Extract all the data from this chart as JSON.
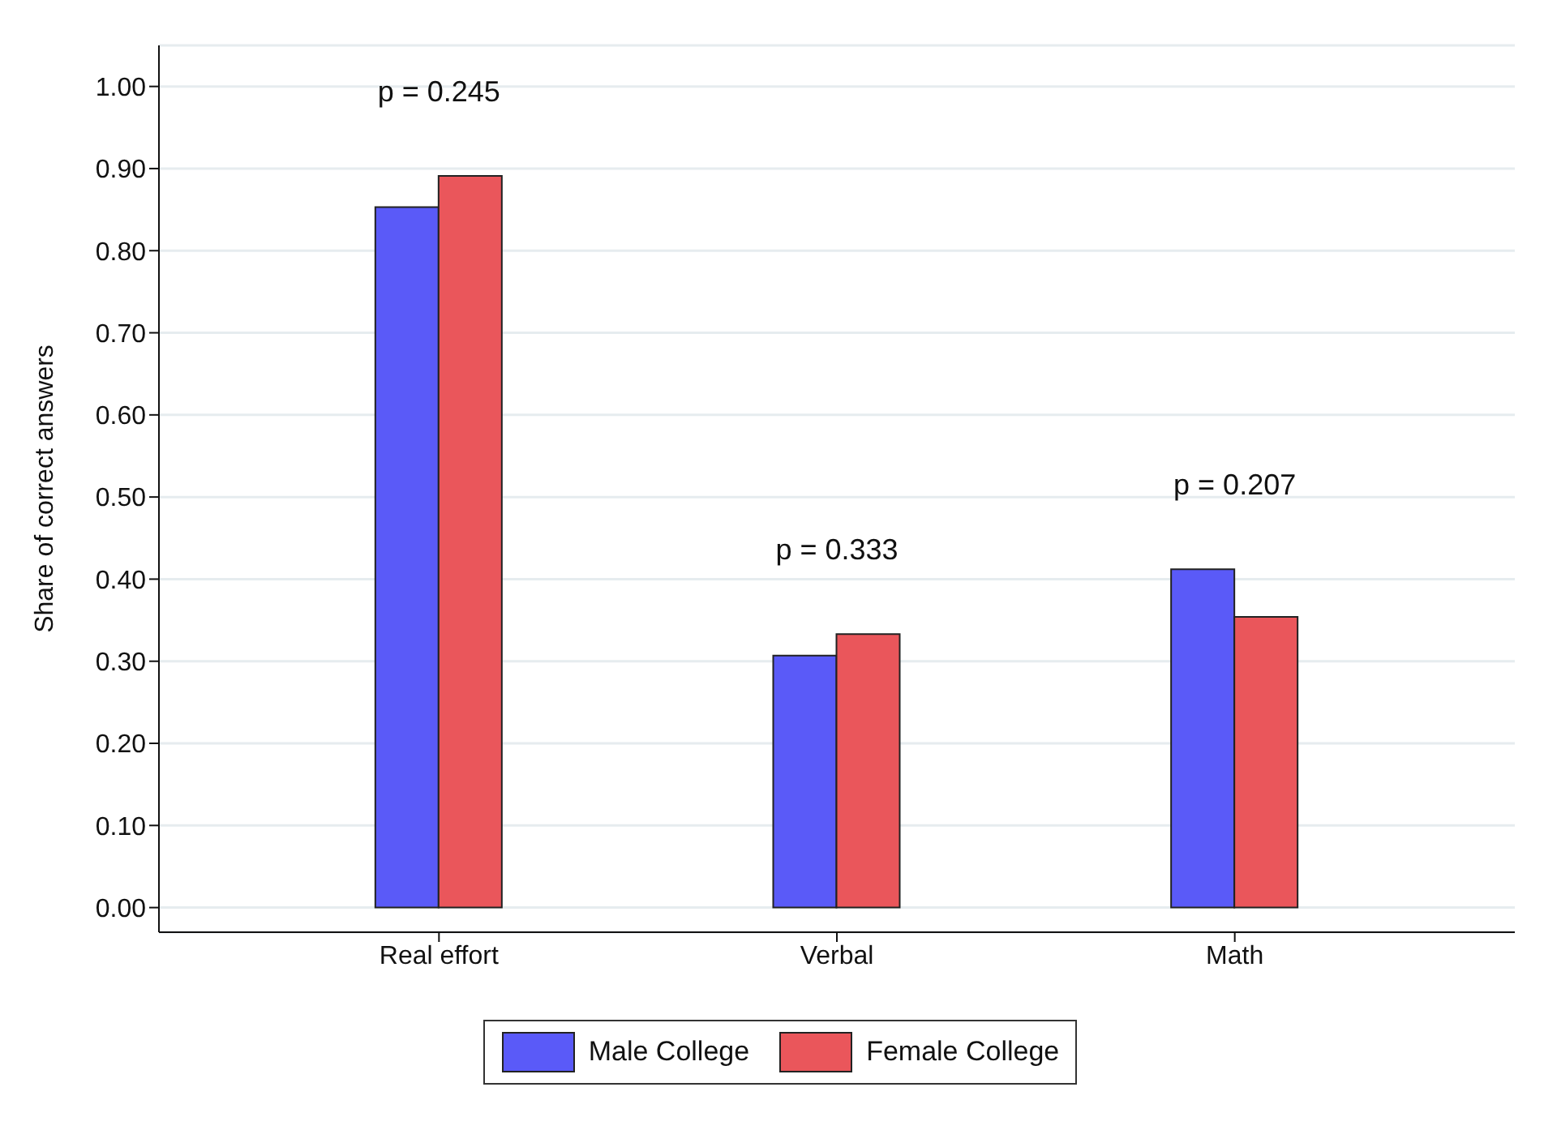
{
  "chart_data": {
    "type": "bar",
    "ylabel": "Share of correct answers",
    "categories": [
      "Real effort",
      "Verbal",
      "Math"
    ],
    "series": [
      {
        "name": "Male College",
        "color": "#5a5af8",
        "values": [
          0.853,
          0.307,
          0.412
        ]
      },
      {
        "name": "Female College",
        "color": "#ea565b",
        "values": [
          0.891,
          0.333,
          0.354
        ]
      }
    ],
    "ylim": [
      -0.03,
      1.05
    ],
    "yticks": [
      {
        "value": 0,
        "label": "0.00"
      },
      {
        "value": 0.1,
        "label": "0.10"
      },
      {
        "value": 0.2,
        "label": "0.20"
      },
      {
        "value": 0.3,
        "label": "0.30"
      },
      {
        "value": 0.4,
        "label": "0.40"
      },
      {
        "value": 0.5,
        "label": "0.50"
      },
      {
        "value": 0.6,
        "label": "0.60"
      },
      {
        "value": 0.7,
        "label": "0.70"
      },
      {
        "value": 0.8,
        "label": "0.80"
      },
      {
        "value": 0.9,
        "label": "0.90"
      },
      {
        "value": 1,
        "label": "1.00"
      }
    ],
    "annotations": [
      "p = 0.245",
      "p = 0.333",
      "p = 0.207"
    ],
    "grid": "y",
    "legend": "bottom"
  }
}
